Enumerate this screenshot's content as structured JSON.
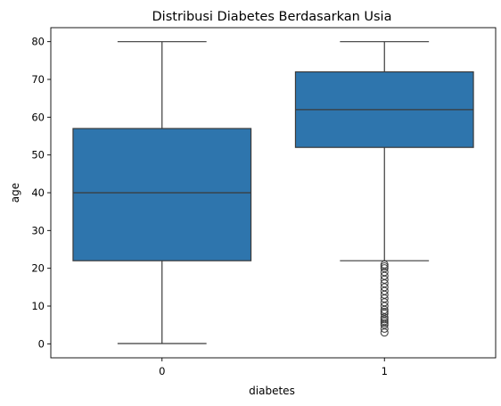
{
  "chart_data": {
    "type": "box",
    "title": "Distribusi Diabetes Berdasarkan Usia",
    "xlabel": "diabetes",
    "ylabel": "age",
    "categories": [
      "0",
      "1"
    ],
    "ylim": [
      -3.7,
      83.7
    ],
    "yticks": [
      "0",
      "10",
      "20",
      "30",
      "40",
      "50",
      "60",
      "70",
      "80"
    ],
    "box_color": "#2e75ad",
    "line_color": "#3a3a3a",
    "grid": false,
    "boxes": [
      {
        "category": "0",
        "whisker_low": 0.08,
        "q1": 22,
        "median": 40,
        "q3": 57,
        "whisker_high": 80,
        "outliers": []
      },
      {
        "category": "1",
        "whisker_low": 22,
        "q1": 52,
        "median": 62,
        "q3": 72,
        "whisker_high": 80,
        "outliers": [
          3,
          4,
          5,
          5.5,
          6,
          6.5,
          7,
          8,
          8.5,
          9,
          10,
          11,
          12,
          13,
          14,
          15,
          16,
          17,
          18,
          19,
          20,
          20.5,
          21
        ]
      }
    ]
  }
}
